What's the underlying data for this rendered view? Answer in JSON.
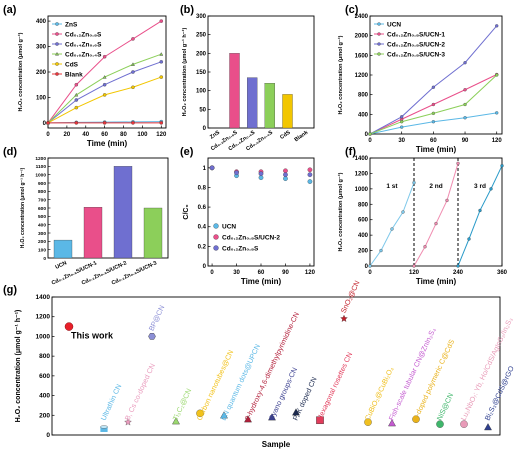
{
  "figure": {
    "panel_labels": [
      "(a)",
      "(b)",
      "(c)",
      "(d)",
      "(e)",
      "(f)",
      "(g)"
    ]
  },
  "chart_data": [
    {
      "panel": "(a)",
      "type": "line",
      "xlabel": "Time (min)",
      "ylabel": "H₂O₂ concentration (μmol g⁻¹)",
      "xlim": [
        0,
        125
      ],
      "ylim": [
        -20,
        420
      ],
      "xticks": [
        0,
        20,
        40,
        60,
        80,
        100,
        120
      ],
      "yticks": [
        0,
        100,
        200,
        300,
        400
      ],
      "x": [
        0,
        30,
        60,
        90,
        120
      ],
      "legend_position": "top-left",
      "series": [
        {
          "name": "ZnS",
          "color": "#5bb8e6",
          "marker": "circle",
          "values": [
            0,
            2,
            3,
            4,
            5
          ]
        },
        {
          "name": "Cd₀.₂Zn₀.₈S",
          "color": "#e94f8a",
          "marker": "circle",
          "values": [
            0,
            150,
            260,
            330,
            400
          ]
        },
        {
          "name": "Cd₀.₄Zn₀.₆S",
          "color": "#6f6fd0",
          "marker": "circle",
          "values": [
            0,
            90,
            150,
            200,
            240
          ]
        },
        {
          "name": "Cd₀.₆Zn₀.₄S",
          "color": "#8ccf5a",
          "marker": "triangle",
          "values": [
            0,
            110,
            180,
            230,
            270
          ]
        },
        {
          "name": "CdS",
          "color": "#f2c600",
          "marker": "circle",
          "values": [
            0,
            60,
            110,
            140,
            180
          ]
        },
        {
          "name": "Blank",
          "color": "#e8343a",
          "marker": "circle",
          "values": [
            0,
            0,
            0,
            0,
            0
          ]
        }
      ]
    },
    {
      "panel": "(b)",
      "type": "bar",
      "ylabel": "H₂O₂ concentration (μmol g⁻¹ h⁻¹)",
      "ylim": [
        0,
        300
      ],
      "yticks": [
        0,
        50,
        100,
        150,
        200,
        250,
        300
      ],
      "categories": [
        "ZnS",
        "Cd₀.₂Zn₀.₈S",
        "Cd₀.₄Zn₀.₆S",
        "Cd₀.₆Zn₀.₄S",
        "CdS",
        "Blank"
      ],
      "values": [
        0,
        200,
        135,
        120,
        90,
        0
      ],
      "colors": [
        "#5bb8e6",
        "#e94f8a",
        "#6f6fd0",
        "#8ccf5a",
        "#f2c600",
        "#e8343a"
      ]
    },
    {
      "panel": "(c)",
      "type": "line",
      "xlabel": "Time (min)",
      "ylabel": "H₂O₂ concentration (μmol g⁻¹)",
      "xlim": [
        0,
        125
      ],
      "ylim": [
        0,
        2400
      ],
      "xticks": [
        0,
        30,
        60,
        90,
        120
      ],
      "yticks": [
        0,
        400,
        800,
        1200,
        1600,
        2000,
        2400
      ],
      "x": [
        0,
        30,
        60,
        90,
        120
      ],
      "legend_position": "top-left",
      "series": [
        {
          "name": "UCN",
          "color": "#5bb8e6",
          "values": [
            0,
            140,
            250,
            330,
            430
          ]
        },
        {
          "name": "Cd₀.₂Zn₀.₈S/UCN-1",
          "color": "#e94f8a",
          "values": [
            0,
            300,
            600,
            900,
            1210
          ]
        },
        {
          "name": "Cd₀.₂Zn₀.₈S/UCN-2",
          "color": "#6f6fd0",
          "values": [
            0,
            350,
            950,
            1450,
            2200
          ]
        },
        {
          "name": "Cd₀.₂Zn₀.₈S/UCN-3",
          "color": "#8ccf5a",
          "values": [
            0,
            250,
            420,
            600,
            1200
          ]
        }
      ]
    },
    {
      "panel": "(d)",
      "type": "bar",
      "ylabel": "H₂O₂ concentration (μmol g⁻¹ h⁻¹)",
      "ylim": [
        0,
        1200
      ],
      "yticks": [
        0,
        100,
        200,
        300,
        400,
        500,
        600,
        700,
        800,
        900,
        1000,
        1100,
        1200
      ],
      "categories": [
        "UCN",
        "Cd₀.₂Zn₀.₈S/UCN-1",
        "Cd₀.₂Zn₀.₈S/UCN-2",
        "Cd₀.₂Zn₀.₈S/UCN-3"
      ],
      "values": [
        215,
        610,
        1100,
        600
      ],
      "colors": [
        "#5bb8e6",
        "#e94f8a",
        "#6f6fd0",
        "#8ccf5a"
      ]
    },
    {
      "panel": "(e)",
      "type": "scatter",
      "xlabel": "Time (min)",
      "ylabel": "C/C₀",
      "xlim": [
        -5,
        125
      ],
      "ylim": [
        0,
        1.1
      ],
      "xticks": [
        0,
        30,
        60,
        90,
        120
      ],
      "yticks": [
        0.0,
        0.2,
        0.4,
        0.6,
        0.8,
        1.0
      ],
      "x": [
        0,
        30,
        60,
        90,
        120
      ],
      "legend_position": "bottom-left",
      "series": [
        {
          "name": "UCN",
          "color": "#5bb8e6",
          "values": [
            1.0,
            0.92,
            0.9,
            0.89,
            0.86
          ]
        },
        {
          "name": "Cd₀.₂Zn₀.₈S/UCN-2",
          "color": "#e94f8a",
          "values": [
            1.0,
            0.96,
            0.96,
            0.97,
            0.98
          ]
        },
        {
          "name": "Cd₀.₂Zn₀.₈S",
          "color": "#6f6fd0",
          "values": [
            1.0,
            0.95,
            0.94,
            0.93,
            0.93
          ]
        }
      ]
    },
    {
      "panel": "(f)",
      "type": "line",
      "xlabel": "Time (min)",
      "ylabel": "H₂O₂ concentration (μmol g⁻¹)",
      "xlim": [
        0,
        360
      ],
      "ylim": [
        0,
        1400
      ],
      "xticks": [
        0,
        120,
        240,
        360
      ],
      "yticks": [
        0,
        200,
        400,
        600,
        800,
        1000,
        1200,
        1400
      ],
      "cycle_labels": [
        "1 st",
        "2 nd",
        "3 rd"
      ],
      "dividers": [
        120,
        240
      ],
      "series": [
        {
          "name": "1 st",
          "color": "#7ec8ea",
          "x": [
            0,
            30,
            60,
            90,
            120
          ],
          "values": [
            0,
            200,
            480,
            700,
            1080
          ]
        },
        {
          "name": "2 nd",
          "color": "#f08cb0",
          "x": [
            120,
            150,
            180,
            210,
            240
          ],
          "values": [
            0,
            250,
            550,
            850,
            1330
          ]
        },
        {
          "name": "3 rd",
          "color": "#2a9bc9",
          "x": [
            240,
            270,
            300,
            330,
            360
          ],
          "values": [
            0,
            350,
            720,
            1000,
            1300
          ]
        }
      ]
    },
    {
      "panel": "(g)",
      "type": "scatter",
      "xlabel": "Sample",
      "ylabel": "H₂O₂ concentration (μmol g⁻¹ h⁻¹)",
      "ylim": [
        0,
        1400
      ],
      "yticks": [
        0,
        200,
        400,
        600,
        800,
        1000,
        1200,
        1400
      ],
      "highlight": {
        "label": "This work",
        "value": 1100,
        "color": "#e8202a"
      },
      "points": [
        {
          "label": "Ultrathin CN",
          "value": 60,
          "color": "#5bb8e6",
          "marker": "cylinder"
        },
        {
          "label": "B, Cs co-doped CN",
          "value": 130,
          "color": "#e99bbd",
          "marker": "star"
        },
        {
          "label": "BP@CN",
          "value": 1000,
          "color": "#8c8fd6",
          "marker": "hexagon"
        },
        {
          "label": "Ti₃C₂@CN",
          "value": 140,
          "color": "#9bd86f",
          "marker": "triangle"
        },
        {
          "label": "Carbon nanotubes@CN",
          "value": 220,
          "color": "#f2c21a",
          "marker": "circle"
        },
        {
          "label": "BN quantum dots@UPCN",
          "value": 200,
          "color": "#5bb8e6",
          "marker": "triangle"
        },
        {
          "label": "2-hydroxy-4,6-dimethylpyrimidine-CN",
          "value": 160,
          "color": "#b21f3a",
          "marker": "triangle"
        },
        {
          "label": "Cyano groups-CN",
          "value": 180,
          "color": "#3a3f8f",
          "marker": "triangle"
        },
        {
          "label": "P, K doped CN",
          "value": 230,
          "color": "#1c2a4f",
          "marker": "triangle"
        },
        {
          "label": "Hexagonal rosettes CN",
          "value": 150,
          "color": "#e23b5b",
          "marker": "square"
        },
        {
          "label": "SnO₂@CN",
          "value": 1180,
          "color": "#c2202a",
          "marker": "star"
        },
        {
          "label": "CuBiO₂@CuBi₂O₄",
          "value": 130,
          "color": "#f0c020",
          "marker": "circle"
        },
        {
          "label": "Fish-scale tubular CN@ZnIn₂S₄",
          "value": 120,
          "color": "#c45bd0",
          "marker": "triangle"
        },
        {
          "label": "S-doped polymeric C@CdS",
          "value": 160,
          "color": "#e9b21a",
          "marker": "circle"
        },
        {
          "label": "NiS@CN",
          "value": 110,
          "color": "#3fb66b",
          "marker": "circle"
        },
        {
          "label": "Lu₂NbO₇: Yb, Ho/CdS/AgInS₂/In₂S₃",
          "value": 110,
          "color": "#e89bb8",
          "marker": "circle"
        },
        {
          "label": "Bi₂S₃@CdS@rGO",
          "value": 80,
          "color": "#2e3f8f",
          "marker": "triangle"
        }
      ]
    }
  ]
}
